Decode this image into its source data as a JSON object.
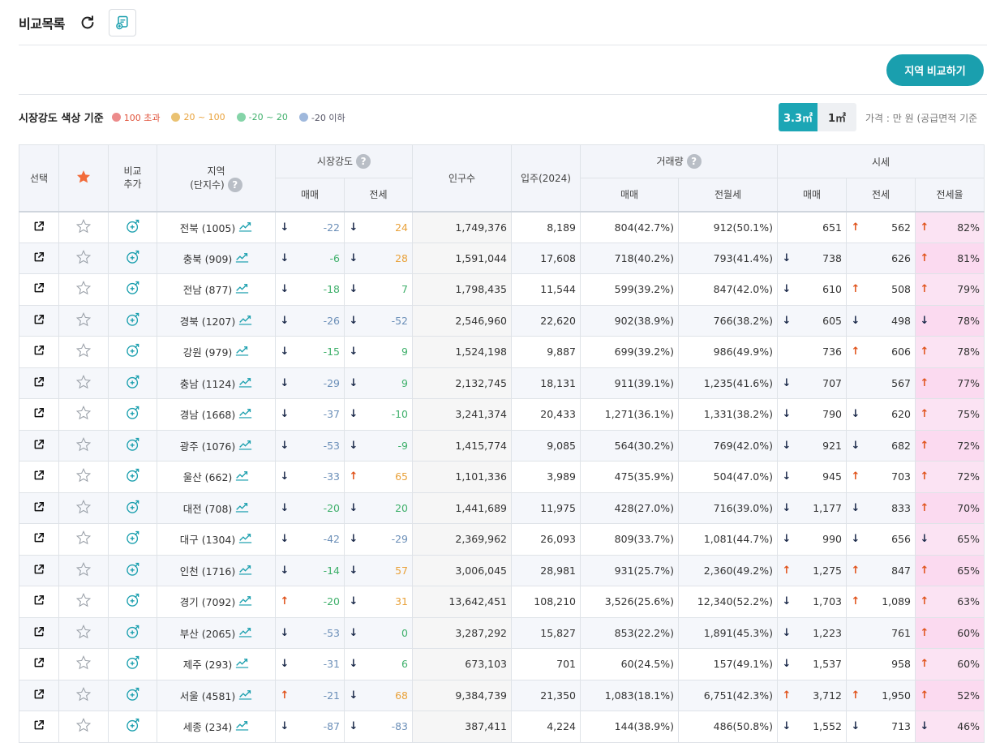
{
  "header": {
    "title": "비교목록"
  },
  "compare_button": "지역 비교하기",
  "legend": {
    "title": "시장강도 색상 기준",
    "items": [
      {
        "label": "100 초과",
        "color": "#ec8b8b",
        "text_color": "#e0533b"
      },
      {
        "label": "20 ~ 100",
        "color": "#eac272",
        "text_color": "#e9a23b"
      },
      {
        "label": "-20 ~ 20",
        "color": "#85d4a8",
        "text_color": "#3fb06b"
      },
      {
        "label": "-20 이하",
        "color": "#9fb8dc",
        "text_color": "#556"
      }
    ]
  },
  "units": {
    "active": "3.3㎡",
    "other": "1㎡"
  },
  "price_note": "가격 : 만 원 (공급면적 기준",
  "columns": {
    "select": "선택",
    "compare_add": "비교 추가",
    "region": "지역",
    "region_sub": "(단지수)",
    "market": "시장강도",
    "population": "인구수",
    "supply": "입주(2024)",
    "volume": "거래량",
    "price": "시세",
    "sale": "매매",
    "jeonse": "전세",
    "monthly": "전월세",
    "ratio": "전세율"
  },
  "rows": [
    {
      "region": "전북 (1005)",
      "m_sale_dir": "down",
      "m_sale": "-22",
      "m_jeon_dir": "down",
      "m_jeon": "24",
      "m_jeon_tone": "hi",
      "pop": "1,749,376",
      "supply": "8,189",
      "v_sale": "804(42.7%)",
      "v_month": "912(50.1%)",
      "p_sale_dir": "",
      "p_sale": "651",
      "p_jeon_dir": "up",
      "p_jeon": "562",
      "ratio_dir": "up",
      "ratio": "82%"
    },
    {
      "region": "충북 (909)",
      "m_sale_dir": "down",
      "m_sale": "-6",
      "m_jeon_dir": "down",
      "m_jeon": "28",
      "m_jeon_tone": "hi",
      "pop": "1,591,044",
      "supply": "17,608",
      "v_sale": "718(40.2%)",
      "v_month": "793(41.4%)",
      "p_sale_dir": "down",
      "p_sale": "738",
      "p_jeon_dir": "",
      "p_jeon": "626",
      "ratio_dir": "up",
      "ratio": "81%"
    },
    {
      "region": "전남 (877)",
      "m_sale_dir": "down",
      "m_sale": "-18",
      "m_jeon_dir": "down",
      "m_jeon": "7",
      "m_jeon_tone": "mid",
      "pop": "1,798,435",
      "supply": "11,544",
      "v_sale": "599(39.2%)",
      "v_month": "847(42.0%)",
      "p_sale_dir": "down",
      "p_sale": "610",
      "p_jeon_dir": "up",
      "p_jeon": "508",
      "ratio_dir": "up",
      "ratio": "79%"
    },
    {
      "region": "경북 (1207)",
      "m_sale_dir": "down",
      "m_sale": "-26",
      "m_jeon_dir": "down",
      "m_jeon": "-52",
      "m_jeon_tone": "neg",
      "pop": "2,546,960",
      "supply": "22,620",
      "v_sale": "902(38.9%)",
      "v_month": "766(38.2%)",
      "p_sale_dir": "down",
      "p_sale": "605",
      "p_jeon_dir": "down",
      "p_jeon": "498",
      "ratio_dir": "down",
      "ratio": "78%"
    },
    {
      "region": "강원 (979)",
      "m_sale_dir": "down",
      "m_sale": "-15",
      "m_jeon_dir": "down",
      "m_jeon": "9",
      "m_jeon_tone": "mid",
      "pop": "1,524,198",
      "supply": "9,887",
      "v_sale": "699(39.2%)",
      "v_month": "986(49.9%)",
      "p_sale_dir": "",
      "p_sale": "736",
      "p_jeon_dir": "up",
      "p_jeon": "606",
      "ratio_dir": "up",
      "ratio": "78%"
    },
    {
      "region": "충남 (1124)",
      "m_sale_dir": "down",
      "m_sale": "-29",
      "m_jeon_dir": "down",
      "m_jeon": "9",
      "m_jeon_tone": "mid",
      "pop": "2,132,745",
      "supply": "18,131",
      "v_sale": "911(39.1%)",
      "v_month": "1,235(41.6%)",
      "p_sale_dir": "down",
      "p_sale": "707",
      "p_jeon_dir": "",
      "p_jeon": "567",
      "ratio_dir": "up",
      "ratio": "77%"
    },
    {
      "region": "경남 (1668)",
      "m_sale_dir": "down",
      "m_sale": "-37",
      "m_jeon_dir": "down",
      "m_jeon": "-10",
      "m_jeon_tone": "mid",
      "pop": "3,241,374",
      "supply": "20,433",
      "v_sale": "1,271(36.1%)",
      "v_month": "1,331(38.2%)",
      "p_sale_dir": "down",
      "p_sale": "790",
      "p_jeon_dir": "down",
      "p_jeon": "620",
      "ratio_dir": "up",
      "ratio": "75%"
    },
    {
      "region": "광주 (1076)",
      "m_sale_dir": "down",
      "m_sale": "-53",
      "m_jeon_dir": "down",
      "m_jeon": "-9",
      "m_jeon_tone": "mid",
      "pop": "1,415,774",
      "supply": "9,085",
      "v_sale": "564(30.2%)",
      "v_month": "769(42.0%)",
      "p_sale_dir": "down",
      "p_sale": "921",
      "p_jeon_dir": "down",
      "p_jeon": "682",
      "ratio_dir": "up",
      "ratio": "72%"
    },
    {
      "region": "울산 (662)",
      "m_sale_dir": "down",
      "m_sale": "-33",
      "m_jeon_dir": "up",
      "m_jeon": "65",
      "m_jeon_tone": "hi",
      "pop": "1,101,336",
      "supply": "3,989",
      "v_sale": "475(35.9%)",
      "v_month": "504(47.0%)",
      "p_sale_dir": "down",
      "p_sale": "945",
      "p_jeon_dir": "up",
      "p_jeon": "703",
      "ratio_dir": "up",
      "ratio": "72%"
    },
    {
      "region": "대전 (708)",
      "m_sale_dir": "down",
      "m_sale": "-20",
      "m_jeon_dir": "down",
      "m_jeon": "20",
      "m_jeon_tone": "mid",
      "pop": "1,441,689",
      "supply": "11,975",
      "v_sale": "428(27.0%)",
      "v_month": "716(39.0%)",
      "p_sale_dir": "down",
      "p_sale": "1,177",
      "p_jeon_dir": "down",
      "p_jeon": "833",
      "ratio_dir": "up",
      "ratio": "70%"
    },
    {
      "region": "대구 (1304)",
      "m_sale_dir": "down",
      "m_sale": "-42",
      "m_jeon_dir": "down",
      "m_jeon": "-29",
      "m_jeon_tone": "neg",
      "pop": "2,369,962",
      "supply": "26,093",
      "v_sale": "809(33.7%)",
      "v_month": "1,081(44.7%)",
      "p_sale_dir": "down",
      "p_sale": "990",
      "p_jeon_dir": "down",
      "p_jeon": "656",
      "ratio_dir": "down",
      "ratio": "65%"
    },
    {
      "region": "인천 (1716)",
      "m_sale_dir": "down",
      "m_sale": "-14",
      "m_jeon_dir": "down",
      "m_jeon": "57",
      "m_jeon_tone": "hi",
      "pop": "3,006,045",
      "supply": "28,981",
      "v_sale": "931(25.7%)",
      "v_month": "2,360(49.2%)",
      "p_sale_dir": "up",
      "p_sale": "1,275",
      "p_jeon_dir": "up",
      "p_jeon": "847",
      "ratio_dir": "up",
      "ratio": "65%"
    },
    {
      "region": "경기 (7092)",
      "m_sale_dir": "up",
      "m_sale": "-20",
      "m_jeon_dir": "down",
      "m_jeon": "31",
      "m_jeon_tone": "hi",
      "pop": "13,642,451",
      "supply": "108,210",
      "v_sale": "3,526(25.6%)",
      "v_month": "12,340(52.2%)",
      "p_sale_dir": "down",
      "p_sale": "1,703",
      "p_jeon_dir": "up",
      "p_jeon": "1,089",
      "ratio_dir": "up",
      "ratio": "63%"
    },
    {
      "region": "부산 (2065)",
      "m_sale_dir": "down",
      "m_sale": "-53",
      "m_jeon_dir": "down",
      "m_jeon": "0",
      "m_jeon_tone": "mid",
      "pop": "3,287,292",
      "supply": "15,827",
      "v_sale": "853(22.2%)",
      "v_month": "1,891(45.3%)",
      "p_sale_dir": "down",
      "p_sale": "1,223",
      "p_jeon_dir": "",
      "p_jeon": "761",
      "ratio_dir": "up",
      "ratio": "60%"
    },
    {
      "region": "제주 (293)",
      "m_sale_dir": "down",
      "m_sale": "-31",
      "m_jeon_dir": "down",
      "m_jeon": "6",
      "m_jeon_tone": "mid",
      "pop": "673,103",
      "supply": "701",
      "v_sale": "60(24.5%)",
      "v_month": "157(49.1%)",
      "p_sale_dir": "down",
      "p_sale": "1,537",
      "p_jeon_dir": "",
      "p_jeon": "958",
      "ratio_dir": "up",
      "ratio": "60%"
    },
    {
      "region": "서울 (4581)",
      "m_sale_dir": "up",
      "m_sale": "-21",
      "m_jeon_dir": "down",
      "m_jeon": "68",
      "m_jeon_tone": "hi",
      "pop": "9,384,739",
      "supply": "21,350",
      "v_sale": "1,083(18.1%)",
      "v_month": "6,751(42.3%)",
      "p_sale_dir": "up",
      "p_sale": "3,712",
      "p_jeon_dir": "up",
      "p_jeon": "1,950",
      "ratio_dir": "up",
      "ratio": "52%"
    },
    {
      "region": "세종 (234)",
      "m_sale_dir": "down",
      "m_sale": "-87",
      "m_jeon_dir": "down",
      "m_jeon": "-83",
      "m_jeon_tone": "neg",
      "pop": "387,411",
      "supply": "4,224",
      "v_sale": "144(38.9%)",
      "v_month": "486(50.8%)",
      "p_sale_dir": "down",
      "p_sale": "1,552",
      "p_jeon_dir": "down",
      "p_jeon": "713",
      "ratio_dir": "down",
      "ratio": "46%"
    }
  ],
  "colors": {
    "accent": "#1a9fae",
    "up": "#e0531b",
    "down": "#1b2a4a",
    "negative": "#6b8fb8",
    "neutral": "#3fb06b",
    "warm": "#e9a23b",
    "ratio_bg": "#fbe3f3"
  },
  "icons": [
    "refresh-icon",
    "save-list-icon",
    "star-icon",
    "external-link-icon",
    "compare-add-icon",
    "trend-chart-icon",
    "help-icon"
  ]
}
